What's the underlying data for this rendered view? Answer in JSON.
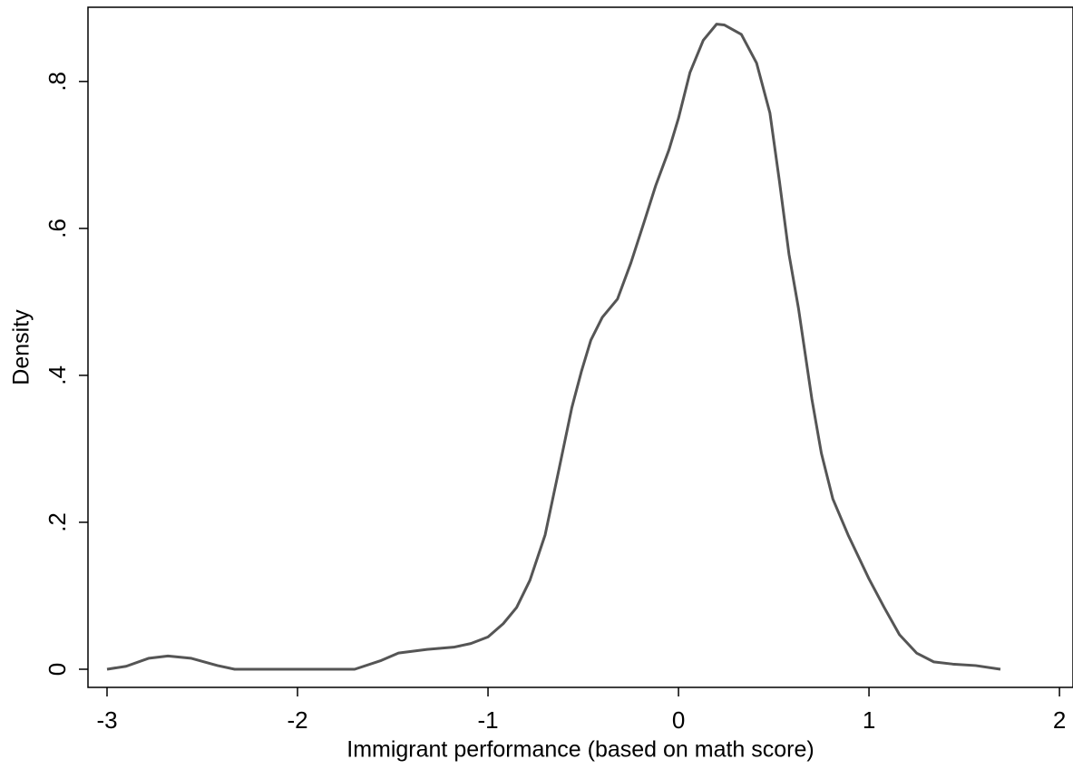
{
  "chart_data": {
    "type": "line",
    "xlabel": "Immigrant performance (based on math score)",
    "ylabel": "Density",
    "x": [
      -3,
      -2.9,
      -2.78,
      -2.68,
      -2.56,
      -2.42,
      -2.33,
      -2,
      -1.7,
      -1.56,
      -1.47,
      -1.32,
      -1.18,
      -1.09,
      -1,
      -0.92,
      -0.85,
      -0.78,
      -0.7,
      -0.63,
      -0.56,
      -0.51,
      -0.46,
      -0.4,
      -0.32,
      -0.25,
      -0.18,
      -0.12,
      -0.05,
      0,
      0.06,
      0.13,
      0.2,
      0.24,
      0.33,
      0.41,
      0.48,
      0.53,
      0.58,
      0.63,
      0.7,
      0.75,
      0.81,
      0.89,
      1,
      1.08,
      1.16,
      1.25,
      1.34,
      1.44,
      1.56,
      1.69
    ],
    "series": [
      {
        "color": "#555555",
        "values": [
          0,
          0.004,
          0.015,
          0.018,
          0.015,
          0.005,
          0,
          0,
          0,
          0.012,
          0.022,
          0.027,
          0.03,
          0.035,
          0.044,
          0.062,
          0.084,
          0.121,
          0.183,
          0.269,
          0.356,
          0.405,
          0.448,
          0.479,
          0.504,
          0.553,
          0.609,
          0.658,
          0.707,
          0.75,
          0.812,
          0.856,
          0.878,
          0.877,
          0.864,
          0.825,
          0.757,
          0.664,
          0.565,
          0.491,
          0.368,
          0.294,
          0.232,
          0.183,
          0.123,
          0.084,
          0.047,
          0.022,
          0.01,
          0.007,
          0.005,
          0
        ]
      }
    ],
    "xlim": [
      -3.1,
      2.071
    ],
    "ylim": [
      -0.0247,
      0.901
    ],
    "xticks": [
      -3,
      -2,
      -1,
      0,
      1,
      2
    ],
    "yticks": [
      0,
      {
        "value": 0.2,
        "label": ".2"
      },
      {
        "value": 0.4,
        "label": ".4"
      },
      {
        "value": 0.6,
        "label": ".6"
      },
      {
        "value": 0.8,
        "label": ".8"
      }
    ]
  }
}
